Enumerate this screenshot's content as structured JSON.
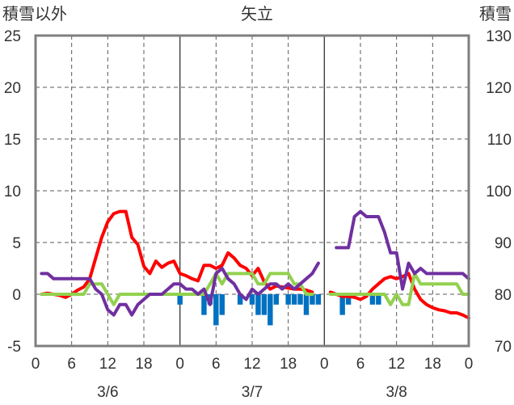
{
  "chart_data": {
    "type": "line",
    "title": "矢立",
    "ylabel_left": "積雪以外",
    "ylabel_right": "積雪",
    "ylim_left": [
      -5,
      25
    ],
    "ylim_right": [
      70,
      130
    ],
    "yticks_left": [
      "-5",
      "0",
      "5",
      "10",
      "15",
      "20",
      "25"
    ],
    "yticks_right": [
      "70",
      "80",
      "90",
      "100",
      "110",
      "120",
      "130"
    ],
    "xlim_hours": [
      0,
      72
    ],
    "xticks": [
      "0",
      "6",
      "12",
      "18",
      "0",
      "6",
      "12",
      "18",
      "0",
      "6",
      "12",
      "18",
      "0"
    ],
    "date_labels": [
      "3/6",
      "3/7",
      "3/8"
    ],
    "grid": true,
    "colors": {
      "red": "#ff0000",
      "green": "#92d050",
      "purple": "#7030a0",
      "bars": "#0070c0",
      "frame": "#7f7f7f",
      "grid": "#595959"
    },
    "series": [
      {
        "color": "red",
        "kind": "line",
        "x": [
          1,
          2,
          3,
          4,
          5,
          6,
          7,
          8,
          9,
          10,
          11,
          12,
          13,
          14,
          15,
          16,
          17,
          18,
          19,
          20,
          21,
          22,
          23,
          24,
          25,
          26,
          27,
          28,
          29,
          30,
          31,
          32,
          33,
          34,
          35,
          36,
          37,
          38,
          39,
          40,
          41,
          42,
          43,
          44,
          45,
          46,
          47,
          48,
          49,
          50,
          51,
          52,
          53,
          54,
          55,
          56,
          57,
          58,
          59,
          60,
          61,
          62,
          63,
          64,
          65,
          66,
          67,
          68,
          69,
          70,
          71,
          72
        ],
        "y": [
          0,
          0.1,
          0,
          -0.1,
          -0.3,
          0,
          0.4,
          0.7,
          1.5,
          3.5,
          5.5,
          7,
          7.8,
          8,
          8,
          5.5,
          4.8,
          2.7,
          2,
          3.2,
          2.6,
          3,
          3.2,
          2,
          1.8,
          1.5,
          1.3,
          2.8,
          2.8,
          2.5,
          2.8,
          4,
          3.5,
          2.8,
          2.5,
          1.8,
          2.5,
          1.2,
          0.5,
          0.8,
          0.7,
          0.6,
          0.5,
          0.5,
          0.4,
          0.2,
          null,
          null,
          0.2,
          0,
          -0.2,
          -0.2,
          -0.3,
          -0.5,
          -0.2,
          0.5,
          1,
          1.5,
          1.7,
          1.5,
          1.7,
          2,
          0.5,
          -0.5,
          -1,
          -1.3,
          -1.5,
          -1.6,
          -1.8,
          -1.8,
          -2,
          -2.3
        ]
      },
      {
        "color": "green",
        "kind": "line",
        "x": [
          1,
          2,
          3,
          4,
          5,
          6,
          7,
          8,
          9,
          10,
          11,
          12,
          13,
          14,
          15,
          16,
          17,
          18,
          19,
          20,
          21,
          22,
          23,
          24,
          25,
          26,
          27,
          28,
          29,
          30,
          31,
          32,
          33,
          34,
          35,
          36,
          37,
          38,
          39,
          40,
          41,
          42,
          43,
          44,
          45,
          46,
          47,
          48,
          49,
          50,
          51,
          52,
          53,
          54,
          55,
          56,
          57,
          58,
          59,
          60,
          61,
          62,
          63,
          64,
          65,
          66,
          67,
          68,
          69,
          70,
          71,
          72
        ],
        "y": [
          0,
          0,
          0,
          0,
          0,
          0,
          0,
          0,
          1,
          1,
          1,
          0,
          -1,
          0,
          0,
          0,
          0,
          0,
          0,
          0,
          0,
          0,
          0,
          0,
          0,
          0,
          0,
          0,
          1,
          2,
          1,
          2,
          2,
          2,
          2,
          2,
          1,
          1,
          2,
          2,
          2,
          2,
          1,
          1,
          0,
          0,
          null,
          null,
          0,
          0,
          0,
          0,
          0,
          0,
          0,
          0,
          0,
          0,
          -1,
          0,
          -1,
          -1,
          2,
          1,
          1,
          1,
          1,
          1,
          1,
          1,
          0,
          0
        ]
      },
      {
        "color": "purple",
        "kind": "line",
        "axis": "right",
        "x": [
          1,
          2,
          3,
          4,
          5,
          6,
          7,
          8,
          9,
          10,
          11,
          12,
          13,
          14,
          15,
          16,
          17,
          18,
          19,
          20,
          21,
          22,
          23,
          24,
          25,
          26,
          27,
          28,
          29,
          30,
          31,
          32,
          33,
          34,
          35,
          36,
          37,
          38,
          39,
          40,
          41,
          42,
          43,
          44,
          45,
          46,
          47,
          48,
          49,
          50,
          51,
          52,
          53,
          54,
          55,
          56,
          57,
          58,
          59,
          60,
          61,
          62,
          63,
          64,
          65,
          66,
          67,
          68,
          69,
          70,
          71,
          72
        ],
        "y": [
          84,
          84,
          83,
          83,
          83,
          83,
          83,
          83,
          83,
          81,
          80,
          77,
          76,
          78,
          78,
          76,
          78,
          79,
          80,
          80,
          80,
          81,
          82,
          82,
          81,
          81,
          80,
          81,
          78,
          84,
          85,
          83,
          82,
          80,
          79,
          81,
          80,
          81,
          82,
          82,
          81,
          82,
          81,
          82,
          83,
          84,
          86,
          null,
          null,
          89,
          89,
          89,
          95,
          96,
          95,
          95,
          95,
          92,
          88,
          88,
          81,
          86,
          84,
          85,
          84,
          84,
          84,
          84,
          84,
          84,
          84,
          83
        ]
      },
      {
        "color": "bars",
        "kind": "bar",
        "x": [
          24,
          28,
          29,
          30,
          31,
          34,
          36,
          37,
          38,
          39,
          40,
          42,
          43,
          44,
          45,
          46,
          47,
          51,
          52,
          56,
          57
        ],
        "y": [
          -1,
          -2,
          -1,
          -3,
          -2,
          -1,
          -1,
          -2,
          -2,
          -3,
          -1,
          -1,
          -1,
          -1,
          -2,
          -1,
          -1,
          -2,
          -1,
          -1,
          -1
        ]
      }
    ]
  }
}
